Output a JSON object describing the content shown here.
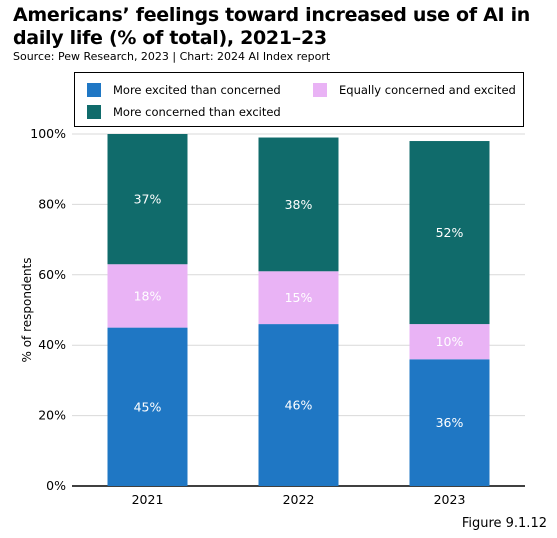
{
  "title": "Americans’ feelings toward increased use of AI in daily life (% of total), 2021–23",
  "subtitle": "Source: Pew Research, 2023 | Chart: 2024 AI Index report",
  "figure_number": "Figure 9.1.12",
  "colors": {
    "excited": "#1f77c4",
    "equal": "#e9b3f5",
    "concerned": "#106b6b"
  },
  "chart_data": {
    "type": "bar",
    "stacked": true,
    "categories": [
      "2021",
      "2022",
      "2023"
    ],
    "series": [
      {
        "name": "More excited than concerned",
        "values": [
          45,
          46,
          36
        ],
        "labels": [
          "45%",
          "46%",
          "36%"
        ],
        "color": "#1f77c4"
      },
      {
        "name": "Equally concerned and excited",
        "values": [
          18,
          15,
          10
        ],
        "labels": [
          "18%",
          "15%",
          "10%"
        ],
        "color": "#e9b3f5"
      },
      {
        "name": "More concerned than excited",
        "values": [
          37,
          38,
          52
        ],
        "labels": [
          "37%",
          "38%",
          "52%"
        ],
        "color": "#106b6b"
      }
    ],
    "ylabel": "% of respondents",
    "ylim": [
      0,
      100
    ],
    "yticks": [
      "0%",
      "20%",
      "40%",
      "60%",
      "80%",
      "100%"
    ],
    "ytick_values": [
      0,
      20,
      40,
      60,
      80,
      100
    ],
    "grid": true,
    "legend_position": "top"
  }
}
